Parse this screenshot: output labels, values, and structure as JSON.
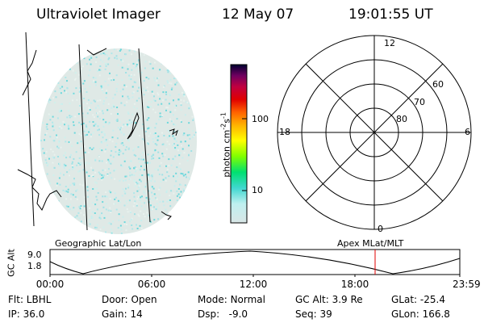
{
  "header": {
    "instrument": "Ultraviolet Imager",
    "date": "12 May 07",
    "time": "19:01:55 UT"
  },
  "colorbar": {
    "unit_label": "photon cm-2s-1",
    "unit_base": "photon cm",
    "unit_exp1": "-2",
    "unit_mid": "s",
    "unit_exp2": "-1",
    "scale": "log",
    "tick_labels": [
      "100",
      "10"
    ],
    "colors": [
      "#d7e8e8",
      "#bfeeee",
      "#40d8d0",
      "#00e070",
      "#80ff00",
      "#ffff00",
      "#ffb000",
      "#ff6000",
      "#e00000",
      "#c00040",
      "#800060",
      "#400040",
      "#000030"
    ]
  },
  "left_panel": {
    "caption": "Geographic Lat/Lon"
  },
  "right_panel": {
    "caption": "Apex MLat/MLT",
    "mlt_labels": {
      "top": "12",
      "left": "18",
      "right": "6",
      "bottom": "0"
    },
    "mlat_labels": [
      "60",
      "70",
      "80"
    ]
  },
  "altitude_plot": {
    "ylabel": "GC Alt",
    "ytick_top": "9.0",
    "ytick_bottom": "1.8",
    "time_labels": [
      "00:00",
      "06:00",
      "12:00",
      "18:00",
      "23:59"
    ],
    "current_time_color": "#e00000"
  },
  "status": {
    "filter": "Flt: LBHL",
    "door": "Door: Open",
    "mode_key": "Mode:",
    "mode_value": "Normal",
    "gc_alt": "GC Alt: 3.9 Re",
    "glat": "GLat: -25.4",
    "ip": "IP: 36.0",
    "gain": "Gain: 14",
    "dsp_key": "Dsp:",
    "dsp_value": "-9.0",
    "seq": "Seq: 39",
    "glon": "GLon: 166.8"
  }
}
